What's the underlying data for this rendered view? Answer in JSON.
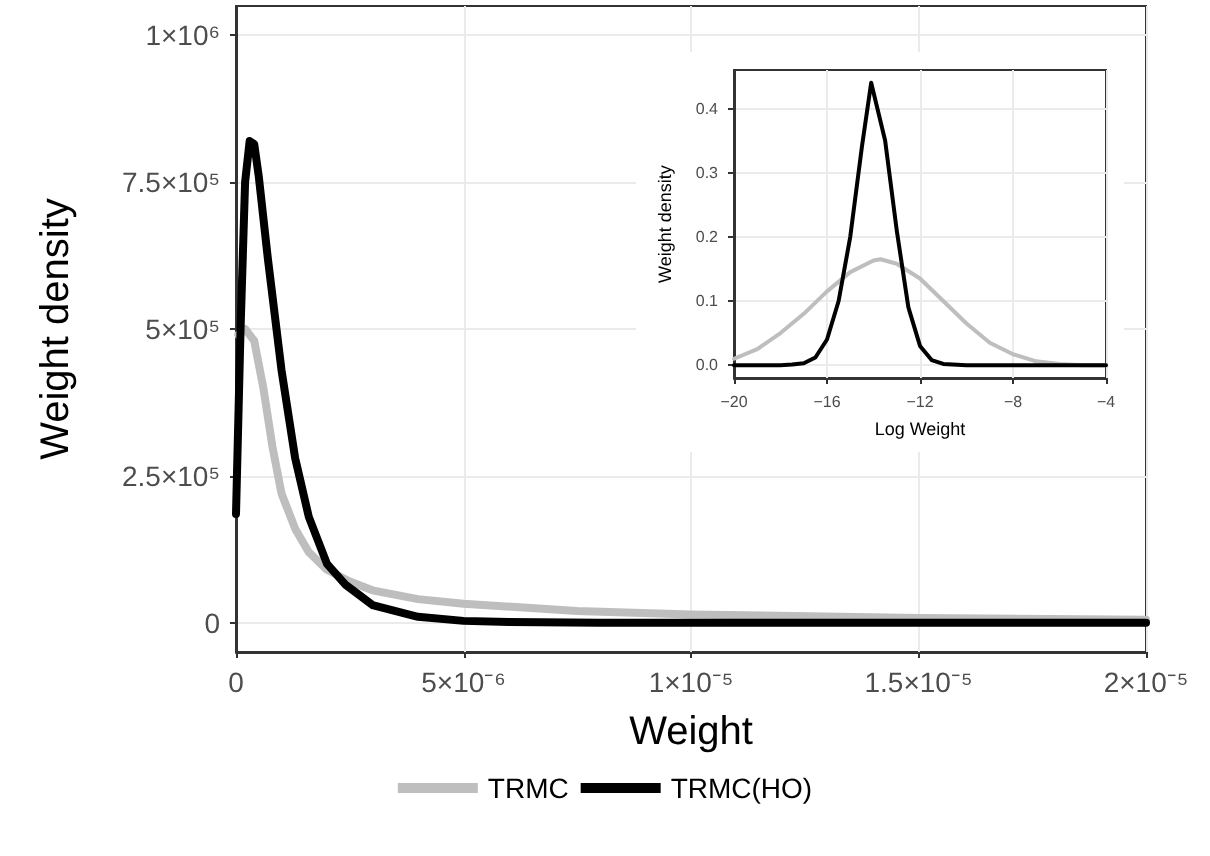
{
  "chart_data": [
    {
      "type": "line",
      "xlabel": "Weight",
      "ylabel": "Weight density",
      "xlim": [
        0,
        2e-05
      ],
      "ylim": [
        -50000,
        1050000
      ],
      "xticks": [
        {
          "value": 0,
          "label": "0"
        },
        {
          "value": 5e-06,
          "label": "5×10⁻⁶"
        },
        {
          "value": 1e-05,
          "label": "1×10⁻⁵"
        },
        {
          "value": 1.5e-05,
          "label": "1.5×10⁻⁵"
        },
        {
          "value": 2e-05,
          "label": "2×10⁻⁵"
        }
      ],
      "yticks": [
        {
          "value": 0,
          "label": "0"
        },
        {
          "value": 250000,
          "label": "2.5×10⁵"
        },
        {
          "value": 500000,
          "label": "5×10⁵"
        },
        {
          "value": 750000,
          "label": "7.5×10⁵"
        },
        {
          "value": 1000000,
          "label": "1×10⁶"
        }
      ],
      "grid": true,
      "legend": "bottom",
      "line_style": "solid",
      "series": [
        {
          "name": "TRMC",
          "color": "#bebebe",
          "x": [
            5e-08,
            2e-07,
            4e-07,
            6e-07,
            8e-07,
            1e-06,
            1.3e-06,
            1.6e-06,
            2e-06,
            2.5e-06,
            3e-06,
            4e-06,
            5e-06,
            7.5e-06,
            1e-05,
            1.5e-05,
            2e-05
          ],
          "values": [
            490000,
            500000,
            480000,
            400000,
            300000,
            220000,
            160000,
            120000,
            90000,
            70000,
            55000,
            40000,
            32000,
            20000,
            14000,
            8000,
            5000
          ]
        },
        {
          "name": "TRMC(HO)",
          "color": "#000000",
          "x": [
            0,
            1e-07,
            2e-07,
            3e-07,
            4e-07,
            5e-07,
            7e-07,
            1e-06,
            1.3e-06,
            1.6e-06,
            2e-06,
            2.4e-06,
            3e-06,
            4e-06,
            5e-06,
            6e-06,
            8e-06,
            1e-05,
            2e-05
          ],
          "values": [
            185000,
            500000,
            750000,
            820000,
            815000,
            760000,
            620000,
            430000,
            280000,
            180000,
            100000,
            65000,
            30000,
            10000,
            3000,
            1000,
            0,
            0,
            0
          ]
        }
      ]
    },
    {
      "type": "line",
      "xlabel": "Log Weight",
      "ylabel": "Weight density",
      "xlim": [
        -20,
        -4
      ],
      "ylim": [
        -0.02,
        0.46
      ],
      "xticks": [
        {
          "value": -20,
          "label": "−20"
        },
        {
          "value": -16,
          "label": "−16"
        },
        {
          "value": -12,
          "label": "−12"
        },
        {
          "value": -8,
          "label": "−8"
        },
        {
          "value": -4,
          "label": "−4"
        }
      ],
      "yticks": [
        {
          "value": 0,
          "label": "0.0"
        },
        0.1,
        0.2,
        0.3,
        0.4
      ],
      "grid": true,
      "line_style": "solid",
      "series": [
        {
          "color": "#bebebe",
          "x": [
            -20,
            -19,
            -18,
            -17,
            -16,
            -15,
            -14,
            -13.7,
            -13,
            -12,
            -11,
            -10,
            -9,
            -8,
            -7,
            -6,
            -5,
            -4
          ],
          "values": [
            0.01,
            0.025,
            0.05,
            0.08,
            0.115,
            0.145,
            0.163,
            0.165,
            0.158,
            0.135,
            0.1,
            0.065,
            0.035,
            0.017,
            0.006,
            0.002,
            0,
            0
          ]
        },
        {
          "color": "#000000",
          "x": [
            -20,
            -18,
            -17.5,
            -17,
            -16.5,
            -16,
            -15.5,
            -15,
            -14.5,
            -14.1,
            -13.5,
            -13,
            -12.5,
            -12,
            -11.5,
            -11,
            -10,
            -4
          ],
          "values": [
            0,
            0,
            0.001,
            0.003,
            0.012,
            0.04,
            0.1,
            0.2,
            0.34,
            0.44,
            0.35,
            0.21,
            0.09,
            0.03,
            0.008,
            0.002,
            0,
            0
          ]
        }
      ]
    }
  ]
}
